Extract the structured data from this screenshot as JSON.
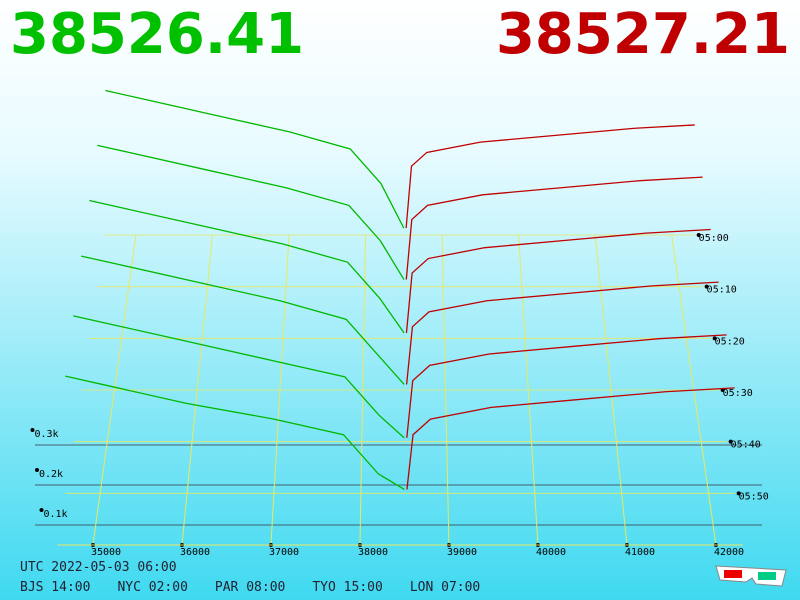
{
  "header": {
    "bid": 38526.41,
    "ask": 38527.21
  },
  "depth_chart": {
    "price_ticks": [
      35000,
      36000,
      37000,
      38000,
      39000,
      40000,
      41000,
      42000
    ],
    "depth_ticks": [
      {
        "value": 300,
        "label": "0.3k"
      },
      {
        "value": 200,
        "label": "0.2k"
      },
      {
        "value": 100,
        "label": "0.1k"
      }
    ],
    "time_ticks": [
      "05:00",
      "05:10",
      "05:20",
      "05:30",
      "05:40",
      "05:50"
    ],
    "bid_prices": [
      34600,
      35000,
      36000,
      37000,
      37800,
      38200,
      38500
    ],
    "ask_prices": [
      38530,
      38600,
      38800,
      39500,
      40500,
      41500,
      42300
    ],
    "bid_depth": [
      [
        420,
        400,
        350,
        300,
        250,
        150,
        20
      ],
      [
        400,
        380,
        330,
        280,
        230,
        130,
        20
      ],
      [
        380,
        360,
        310,
        260,
        210,
        110,
        15
      ],
      [
        360,
        340,
        290,
        240,
        190,
        90,
        15
      ],
      [
        330,
        310,
        260,
        210,
        170,
        70,
        10
      ],
      [
        300,
        280,
        230,
        190,
        150,
        50,
        10
      ]
    ],
    "ask_depth": [
      [
        20,
        200,
        240,
        270,
        290,
        310,
        320
      ],
      [
        20,
        190,
        230,
        260,
        280,
        300,
        310
      ],
      [
        15,
        180,
        220,
        250,
        270,
        290,
        300
      ],
      [
        15,
        170,
        210,
        240,
        260,
        280,
        290
      ],
      [
        10,
        160,
        200,
        230,
        250,
        270,
        280
      ],
      [
        10,
        150,
        190,
        220,
        240,
        260,
        270
      ]
    ]
  },
  "footer": {
    "utc": "UTC 2022-05-03 06:00",
    "zones": [
      "BJS 14:00",
      "NYC 02:00",
      "PAR 08:00",
      "TYO 15:00",
      "LON 07:00"
    ]
  }
}
